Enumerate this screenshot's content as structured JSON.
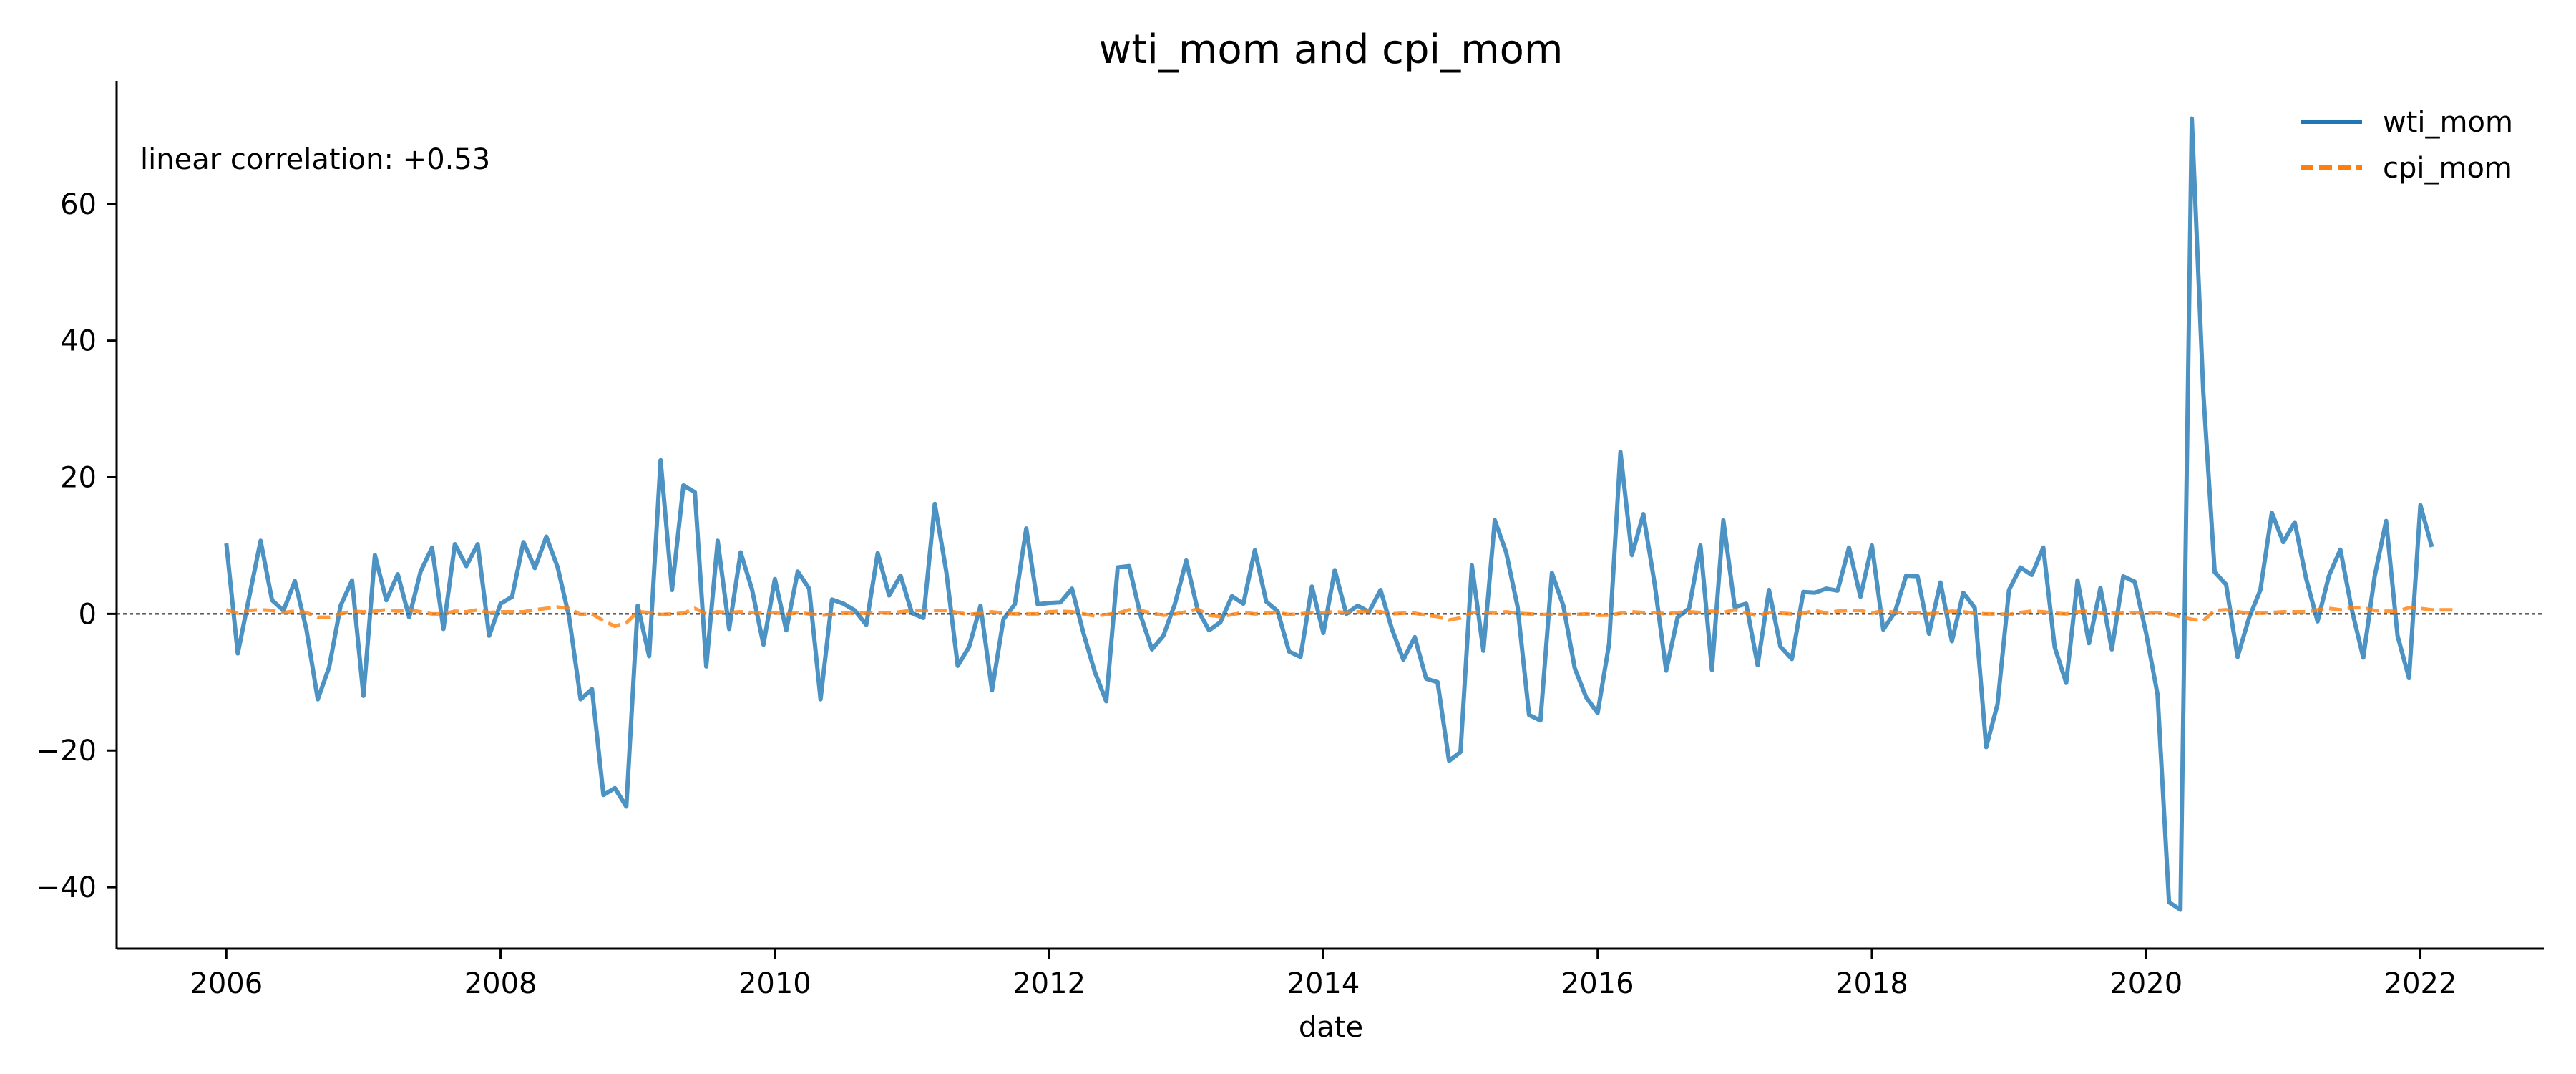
{
  "chart_data": {
    "type": "line",
    "title": "wti_mom and cpi_mom",
    "xlabel": "date",
    "ylabel": "",
    "annotation": "linear correlation: +0.53",
    "xlim": [
      2005.2,
      2022.9
    ],
    "ylim": [
      -49,
      78
    ],
    "x_ticks": [
      2006,
      2008,
      2010,
      2012,
      2014,
      2016,
      2018,
      2020,
      2022
    ],
    "x_tick_labels": [
      "2006",
      "2008",
      "2010",
      "2012",
      "2014",
      "2016",
      "2018",
      "2020",
      "2022"
    ],
    "y_ticks": [
      -40,
      -20,
      0,
      20,
      40,
      60
    ],
    "y_tick_labels": [
      "−40",
      "−20",
      "0",
      "20",
      "40",
      "60"
    ],
    "zero_line": 0,
    "grid": false,
    "legend_position": "top-right",
    "x_start": "2006-01",
    "x_step_months": 1,
    "series": [
      {
        "name": "wti_mom",
        "color": "#1f77b4",
        "style": "solid",
        "values": [
          10.3,
          -5.8,
          2.5,
          10.7,
          2.0,
          0.5,
          4.8,
          -2.2,
          -12.5,
          -7.8,
          1.2,
          4.9,
          -12.0,
          8.6,
          2.0,
          5.8,
          -0.5,
          6.2,
          9.7,
          -2.2,
          10.2,
          7.0,
          10.2,
          -3.2,
          1.5,
          2.5,
          10.5,
          6.7,
          11.3,
          6.8,
          -0.5,
          -12.5,
          -11.0,
          -26.5,
          -25.5,
          -28.2,
          1.2,
          -6.2,
          22.5,
          3.5,
          18.8,
          17.8,
          -7.7,
          10.7,
          -2.2,
          9.0,
          3.6,
          -4.5,
          5.1,
          -2.4,
          6.2,
          3.7,
          -12.5,
          2.1,
          1.5,
          0.5,
          -1.6,
          8.9,
          2.7,
          5.6,
          0.1,
          -0.6,
          16.1,
          6.2,
          -7.6,
          -4.8,
          1.2,
          -11.2,
          -0.8,
          1.4,
          12.5,
          1.4,
          1.6,
          1.7,
          3.7,
          -2.8,
          -8.5,
          -12.8,
          6.8,
          7.0,
          -0.2,
          -5.2,
          -3.2,
          1.4,
          7.8,
          0.6,
          -2.4,
          -1.2,
          2.6,
          1.5,
          9.3,
          1.8,
          0.4,
          -5.5,
          -6.3,
          4.0,
          -2.8,
          6.4,
          0.0,
          1.2,
          0.3,
          3.5,
          -2.2,
          -6.7,
          -3.4,
          -9.5,
          -10.0,
          -21.5,
          -20.2,
          7.1,
          -5.4,
          13.7,
          9.0,
          1.0,
          -14.8,
          -15.6,
          6.0,
          1.2,
          -8.0,
          -12.2,
          -14.5,
          -4.4,
          23.7,
          8.6,
          14.6,
          4.3,
          -8.3,
          -0.5,
          0.8,
          10.0,
          -8.2,
          13.7,
          1.0,
          1.5,
          -7.5,
          3.5,
          -4.8,
          -6.6,
          3.2,
          3.1,
          3.7,
          3.4,
          9.7,
          2.5,
          10.0,
          -2.3,
          0.2,
          5.6,
          5.5,
          -2.9,
          4.6,
          -4.0,
          3.1,
          0.9,
          -19.5,
          -13.2,
          3.5,
          6.8,
          5.7,
          9.7,
          -4.9,
          -10.1,
          4.9,
          -4.3,
          3.8,
          -5.2,
          5.5,
          4.7,
          -2.8,
          -11.8,
          -42.2,
          -43.3,
          72.5,
          32.5,
          6.1,
          4.3,
          -6.3,
          -0.6,
          3.5,
          14.8,
          10.5,
          13.4,
          5.2,
          -1.1,
          5.6,
          9.4,
          0.6,
          -6.4,
          5.5,
          13.6,
          -3.2,
          -9.4,
          15.9,
          9.8
        ]
      },
      {
        "name": "cpi_mom",
        "color": "#ff7f0e",
        "style": "dashed",
        "values": [
          0.6,
          0.1,
          0.5,
          0.6,
          0.5,
          0.2,
          0.4,
          0.2,
          -0.5,
          -0.5,
          0.0,
          0.4,
          0.3,
          0.4,
          0.6,
          0.4,
          0.6,
          0.3,
          0.0,
          0.0,
          0.4,
          0.3,
          0.6,
          0.2,
          0.3,
          0.3,
          0.3,
          0.6,
          0.8,
          1.0,
          0.8,
          -0.1,
          0.0,
          -1.0,
          -1.8,
          -1.3,
          0.3,
          0.2,
          -0.1,
          0.0,
          0.1,
          0.8,
          0.0,
          0.3,
          0.2,
          0.3,
          0.2,
          0.1,
          0.2,
          -0.1,
          0.2,
          0.0,
          -0.2,
          -0.1,
          0.1,
          0.1,
          0.1,
          0.2,
          0.1,
          0.3,
          0.5,
          0.5,
          0.5,
          0.5,
          0.2,
          -0.1,
          0.1,
          0.3,
          0.1,
          0.0,
          0.0,
          0.0,
          0.3,
          0.4,
          0.3,
          0.0,
          -0.3,
          -0.1,
          0.1,
          0.6,
          0.5,
          0.1,
          -0.2,
          0.0,
          0.3,
          0.7,
          -0.2,
          -0.4,
          -0.1,
          0.2,
          0.0,
          0.1,
          0.2,
          -0.1,
          0.0,
          0.2,
          0.2,
          0.3,
          0.2,
          0.3,
          0.4,
          0.3,
          0.0,
          0.1,
          0.1,
          -0.2,
          -0.4,
          -0.9,
          -0.6,
          0.2,
          0.2,
          0.1,
          0.3,
          0.1,
          0.0,
          -0.1,
          -0.1,
          -0.1,
          -0.1,
          0.0,
          -0.2,
          -0.2,
          0.1,
          0.3,
          0.2,
          0.2,
          0.0,
          0.2,
          0.3,
          0.2,
          0.4,
          0.2,
          0.6,
          0.1,
          -0.3,
          0.2,
          0.1,
          0.0,
          0.1,
          0.5,
          0.1,
          0.4,
          0.5,
          0.5,
          0.1,
          0.5,
          0.2,
          0.2,
          0.2,
          0.0,
          0.2,
          0.4,
          0.3,
          0.1,
          0.0,
          0.0,
          -0.1,
          0.2,
          0.4,
          0.3,
          0.1,
          0.0,
          0.3,
          0.4,
          0.1,
          0.1,
          0.1,
          0.2,
          0.1,
          0.2,
          0.0,
          -0.4,
          -0.8,
          -1.0,
          0.5,
          0.6,
          0.3,
          0.1,
          0.1,
          0.2,
          0.3,
          0.3,
          0.3,
          0.6,
          0.8,
          0.6,
          0.9,
          0.9,
          0.5,
          0.4,
          0.4,
          0.9,
          0.8,
          0.6,
          0.6,
          0.6
        ]
      }
    ]
  }
}
